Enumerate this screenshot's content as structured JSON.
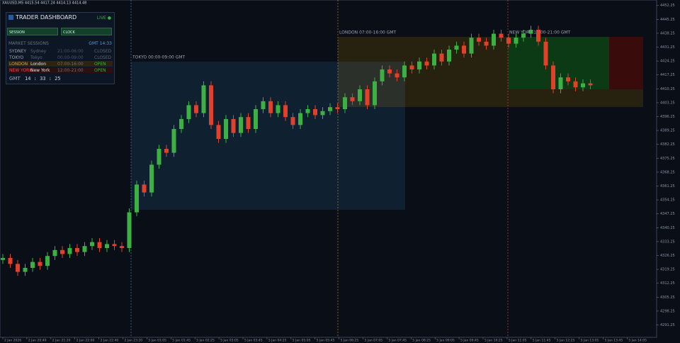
{
  "window": {
    "symbol_info": "XAUUSD,M5  4415.54 4417.24 4414.13 4414.48"
  },
  "dashboard": {
    "title": "TRADER DASHBOARD",
    "status": "LIVE ●",
    "buttons": [
      "SESSION",
      "CLOCK"
    ],
    "sessions_header": "MARKET SESSIONS",
    "gmt_now": "GMT 14:33",
    "rows": [
      {
        "code": "SYDNEY",
        "city": "Sydney",
        "hours": "21:00-06:00",
        "state": "CLOSED"
      },
      {
        "code": "TOKYO",
        "city": "Tokyo",
        "hours": "00:00-09:00",
        "state": "CLOSED"
      },
      {
        "code": "LONDON",
        "city": "London",
        "hours": "07:00-16:00",
        "state": "OPEN"
      },
      {
        "code": "NEW YORK",
        "city": "New York",
        "hours": "12:00-21:00",
        "state": "OPEN"
      }
    ],
    "clock_label": "GMT",
    "clock": "14 : 33 : 25"
  },
  "sessions": [
    {
      "label": "TOKYO  00:00-09:00 GMT",
      "color": "#5a8fc0"
    },
    {
      "label": "LONDON  07:00-16:00 GMT",
      "color": "#c8913a"
    },
    {
      "label": "NEW YORK  12:00-21:00 GMT",
      "color": "#d05050"
    }
  ],
  "chart_data": {
    "type": "candlestick",
    "up_color": "#3cb043",
    "down_color": "#e0412b",
    "ylim": [
      4285,
      4455
    ],
    "yticks": [
      4452.25,
      4445.25,
      4438.25,
      4431.25,
      4424.25,
      4417.25,
      4410.25,
      4403.25,
      4396.25,
      4389.25,
      4382.25,
      4375.25,
      4368.25,
      4361.25,
      4354.25,
      4347.25,
      4340.25,
      4333.25,
      4326.25,
      4319.25,
      4312.25,
      4305.25,
      4298.25,
      4291.25
    ],
    "x_labels": [
      "2 Jan 2026",
      "2 Jan 20:40",
      "2 Jan 21:20",
      "2 Jan 22:00",
      "2 Jan 22:40",
      "2 Jan 23:20",
      "5 Jan 01:05",
      "5 Jan 01:45",
      "5 Jan 02:25",
      "5 Jan 03:05",
      "5 Jan 03:45",
      "5 Jan 04:25",
      "5 Jan 05:05",
      "5 Jan 05:45",
      "5 Jan 06:25",
      "5 Jan 07:05",
      "5 Jan 07:45",
      "5 Jan 08:25",
      "5 Jan 09:05",
      "5 Jan 09:45",
      "5 Jan 10:25",
      "5 Jan 11:05",
      "5 Jan 11:45",
      "5 Jan 12:25",
      "5 Jan 13:05",
      "5 Jan 13:45",
      "5 Jan 14:05"
    ],
    "open": [
      4324,
      4325,
      4322,
      4318,
      4320,
      4323,
      4321,
      4326,
      4329,
      4327,
      4330,
      4328,
      4331,
      4333,
      4330,
      4332,
      4331,
      4330,
      4348,
      4362,
      4358,
      4372,
      4380,
      4378,
      4390,
      4395,
      4402,
      4398,
      4412,
      4392,
      4385,
      4395,
      4388,
      4396,
      4390,
      4400,
      4404,
      4398,
      4402,
      4396,
      4392,
      4398,
      4400,
      4397,
      4399,
      4401,
      4400,
      4406,
      4404,
      4410,
      4402,
      4414,
      4420,
      4418,
      4416,
      4422,
      4420,
      4424,
      4422,
      4428,
      4424,
      4430,
      4432,
      4428,
      4436,
      4434,
      4432,
      4438,
      4436,
      4433,
      4436,
      4438,
      4440,
      4434,
      4422,
      4410,
      4416,
      4414,
      4411,
      4413
    ],
    "high": [
      4327,
      4327,
      4324,
      4322,
      4325,
      4325,
      4328,
      4331,
      4331,
      4332,
      4332,
      4333,
      4335,
      4335,
      4334,
      4334,
      4333,
      4350,
      4364,
      4364,
      4374,
      4382,
      4382,
      4392,
      4397,
      4404,
      4404,
      4414,
      4414,
      4394,
      4397,
      4397,
      4398,
      4398,
      4402,
      4406,
      4406,
      4404,
      4404,
      4398,
      4400,
      4402,
      4402,
      4401,
      4403,
      4403,
      4408,
      4408,
      4412,
      4412,
      4416,
      4422,
      4422,
      4420,
      4424,
      4424,
      4426,
      4426,
      4430,
      4430,
      4432,
      4434,
      4434,
      4438,
      4438,
      4436,
      4440,
      4440,
      4438,
      4438,
      4440,
      4442,
      4442,
      4436,
      4424,
      4418,
      4418,
      4416,
      4415,
      4415
    ],
    "low": [
      4322,
      4320,
      4316,
      4316,
      4318,
      4319,
      4319,
      4324,
      4325,
      4325,
      4326,
      4326,
      4329,
      4328,
      4328,
      4329,
      4328,
      4328,
      4346,
      4356,
      4356,
      4370,
      4376,
      4376,
      4388,
      4393,
      4396,
      4396,
      4390,
      4383,
      4383,
      4386,
      4386,
      4388,
      4388,
      4398,
      4396,
      4396,
      4394,
      4390,
      4390,
      4396,
      4395,
      4395,
      4397,
      4398,
      4398,
      4402,
      4402,
      4400,
      4400,
      4412,
      4416,
      4414,
      4414,
      4418,
      4418,
      4420,
      4420,
      4422,
      4422,
      4428,
      4426,
      4426,
      4432,
      4430,
      4430,
      4434,
      4431,
      4431,
      4434,
      4436,
      4432,
      4420,
      4408,
      4408,
      4412,
      4409,
      4409,
      4410
    ],
    "close": [
      4325,
      4322,
      4318,
      4320,
      4323,
      4321,
      4326,
      4329,
      4327,
      4330,
      4328,
      4331,
      4333,
      4330,
      4332,
      4331,
      4330,
      4348,
      4362,
      4358,
      4372,
      4380,
      4378,
      4390,
      4395,
      4402,
      4398,
      4412,
      4392,
      4385,
      4395,
      4388,
      4396,
      4390,
      4400,
      4404,
      4398,
      4402,
      4396,
      4392,
      4398,
      4400,
      4397,
      4399,
      4401,
      4400,
      4406,
      4404,
      4410,
      4402,
      4414,
      4420,
      4418,
      4416,
      4422,
      4420,
      4424,
      4422,
      4428,
      4424,
      4430,
      4432,
      4428,
      4436,
      4434,
      4432,
      4438,
      4436,
      4433,
      4436,
      4438,
      4440,
      4434,
      4422,
      4410,
      4416,
      4414,
      4411,
      4413,
      4412
    ]
  }
}
